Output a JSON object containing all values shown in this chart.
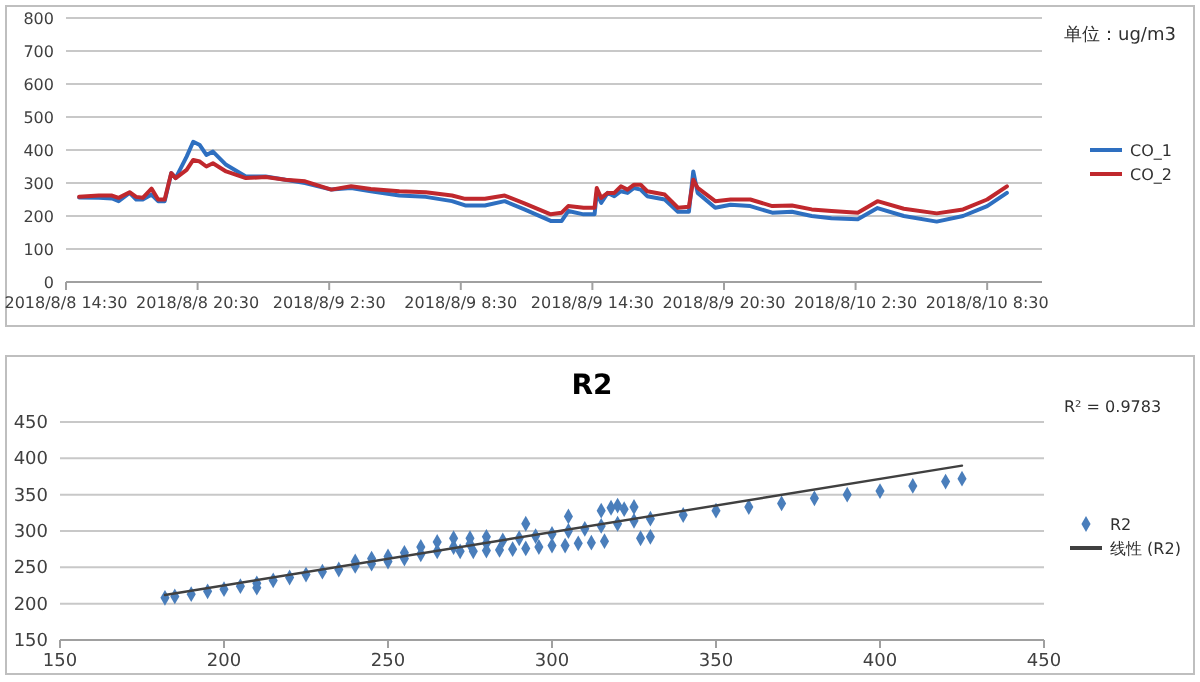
{
  "chart_data": [
    {
      "type": "line",
      "annotations": [
        "单位：ug/m3"
      ],
      "x": [
        "2018-08-08T15:06",
        "2018-08-08T16:00",
        "2018-08-08T16:36",
        "2018-08-08T16:54",
        "2018-08-08T17:24",
        "2018-08-08T17:42",
        "2018-08-08T18:00",
        "2018-08-08T18:24",
        "2018-08-08T18:42",
        "2018-08-08T19:00",
        "2018-08-08T19:18",
        "2018-08-08T19:30",
        "2018-08-08T20:00",
        "2018-08-08T20:18",
        "2018-08-08T20:36",
        "2018-08-08T20:54",
        "2018-08-08T21:12",
        "2018-08-08T21:48",
        "2018-08-08T22:42",
        "2018-08-08T23:36",
        "2018-08-09T00:30",
        "2018-08-09T01:24",
        "2018-08-09T02:36",
        "2018-08-09T03:30",
        "2018-08-09T04:24",
        "2018-08-09T05:42",
        "2018-08-09T06:54",
        "2018-08-09T08:06",
        "2018-08-09T08:42",
        "2018-08-09T09:36",
        "2018-08-09T10:30",
        "2018-08-09T11:24",
        "2018-08-09T12:36",
        "2018-08-09T13:06",
        "2018-08-09T13:24",
        "2018-08-09T14:06",
        "2018-08-09T14:36",
        "2018-08-09T14:42",
        "2018-08-09T14:54",
        "2018-08-09T15:12",
        "2018-08-09T15:30",
        "2018-08-09T15:48",
        "2018-08-09T16:06",
        "2018-08-09T16:24",
        "2018-08-09T16:42",
        "2018-08-09T17:00",
        "2018-08-09T17:48",
        "2018-08-09T18:24",
        "2018-08-09T18:54",
        "2018-08-09T19:06",
        "2018-08-09T19:18",
        "2018-08-09T20:06",
        "2018-08-09T20:48",
        "2018-08-09T21:42",
        "2018-08-09T22:42",
        "2018-08-09T23:36",
        "2018-08-10T00:30",
        "2018-08-10T01:24",
        "2018-08-10T02:36",
        "2018-08-10T03:30",
        "2018-08-10T04:42",
        "2018-08-10T06:12",
        "2018-08-10T07:24",
        "2018-08-10T08:30",
        "2018-08-10T09:24"
      ],
      "series": [
        {
          "name": "CO_1",
          "color": "#2e6fc0",
          "values": [
            256,
            255,
            253,
            245,
            270,
            250,
            250,
            265,
            245,
            245,
            330,
            315,
            380,
            425,
            415,
            385,
            395,
            355,
            320,
            320,
            310,
            300,
            280,
            285,
            275,
            262,
            258,
            245,
            232,
            232,
            245,
            220,
            185,
            185,
            215,
            205,
            205,
            270,
            240,
            270,
            260,
            275,
            270,
            285,
            280,
            260,
            250,
            213,
            213,
            335,
            270,
            225,
            234,
            230,
            210,
            213,
            200,
            193,
            190,
            224,
            200,
            183,
            200,
            230,
            270
          ]
        },
        {
          "name": "CO_2",
          "color": "#c0282d",
          "values": [
            258,
            262,
            262,
            255,
            272,
            258,
            255,
            283,
            250,
            250,
            330,
            315,
            340,
            370,
            365,
            350,
            360,
            335,
            315,
            318,
            310,
            305,
            280,
            290,
            282,
            275,
            272,
            262,
            252,
            252,
            262,
            238,
            205,
            210,
            230,
            225,
            225,
            285,
            255,
            270,
            270,
            290,
            280,
            295,
            295,
            275,
            265,
            225,
            228,
            310,
            285,
            245,
            250,
            250,
            230,
            232,
            220,
            215,
            210,
            245,
            222,
            208,
            220,
            250,
            290
          ]
        }
      ],
      "xlim": [
        "2018-08-08T14:30",
        "2018-08-10T11:00"
      ],
      "xticks": [
        {
          "value": "2018-08-08T14:30",
          "label": "2018/8/8 14:30"
        },
        {
          "value": "2018-08-08T20:30",
          "label": "2018/8/8 20:30"
        },
        {
          "value": "2018-08-09T02:30",
          "label": "2018/8/9 2:30"
        },
        {
          "value": "2018-08-09T08:30",
          "label": "2018/8/9 8:30"
        },
        {
          "value": "2018-08-09T14:30",
          "label": "2018/8/9 14:30"
        },
        {
          "value": "2018-08-09T20:30",
          "label": "2018/8/9 20:30"
        },
        {
          "value": "2018-08-10T02:30",
          "label": "2018/8/10 2:30"
        },
        {
          "value": "2018-08-10T08:30",
          "label": "2018/8/10 8:30"
        }
      ],
      "ylim": [
        0,
        800
      ],
      "yticks": [
        0,
        100,
        200,
        300,
        400,
        500,
        600,
        700,
        800
      ],
      "grid": "y",
      "legend": "right"
    },
    {
      "type": "scatter",
      "title": "R2",
      "annotations": [
        "R² = 0.9783"
      ],
      "series": [
        {
          "name": "R2",
          "color": "#4a7ebb",
          "marker": "diamond",
          "x": [
            182,
            185,
            190,
            195,
            200,
            205,
            210,
            210,
            215,
            220,
            225,
            230,
            235,
            240,
            240,
            245,
            245,
            250,
            250,
            255,
            255,
            260,
            260,
            265,
            265,
            270,
            270,
            275,
            275,
            280,
            280,
            285,
            290,
            295,
            300,
            305,
            310,
            315,
            320,
            325,
            330,
            340,
            350,
            360,
            370,
            380,
            390,
            400,
            410,
            420,
            425,
            272,
            276,
            280,
            284,
            288,
            292,
            296,
            300,
            304,
            308,
            312,
            316,
            292,
            305,
            315,
            318,
            320,
            322,
            325,
            327,
            330
          ],
          "values": [
            208,
            210,
            213,
            217,
            220,
            224,
            228,
            222,
            232,
            236,
            240,
            244,
            247,
            252,
            258,
            255,
            262,
            258,
            265,
            262,
            270,
            268,
            278,
            272,
            285,
            278,
            290,
            282,
            290,
            283,
            292,
            287,
            290,
            293,
            296,
            300,
            303,
            307,
            310,
            314,
            317,
            322,
            328,
            333,
            338,
            345,
            350,
            355,
            362,
            368,
            372,
            272,
            272,
            273,
            274,
            275,
            276,
            278,
            280,
            280,
            283,
            284,
            286,
            310,
            320,
            328,
            332,
            335,
            330,
            333,
            290,
            292
          ]
        },
        {
          "name": "线性 (R2)",
          "type": "line",
          "marker": "none",
          "color": "#404040",
          "x": [
            182,
            425
          ],
          "values": [
            212,
            390
          ]
        }
      ],
      "xlim": [
        150,
        450
      ],
      "xticks": [
        150,
        200,
        250,
        300,
        350,
        400,
        450
      ],
      "ylim": [
        150,
        450
      ],
      "yticks": [
        150,
        200,
        250,
        300,
        350,
        400,
        450
      ],
      "grid": "y",
      "legend": "right"
    }
  ]
}
